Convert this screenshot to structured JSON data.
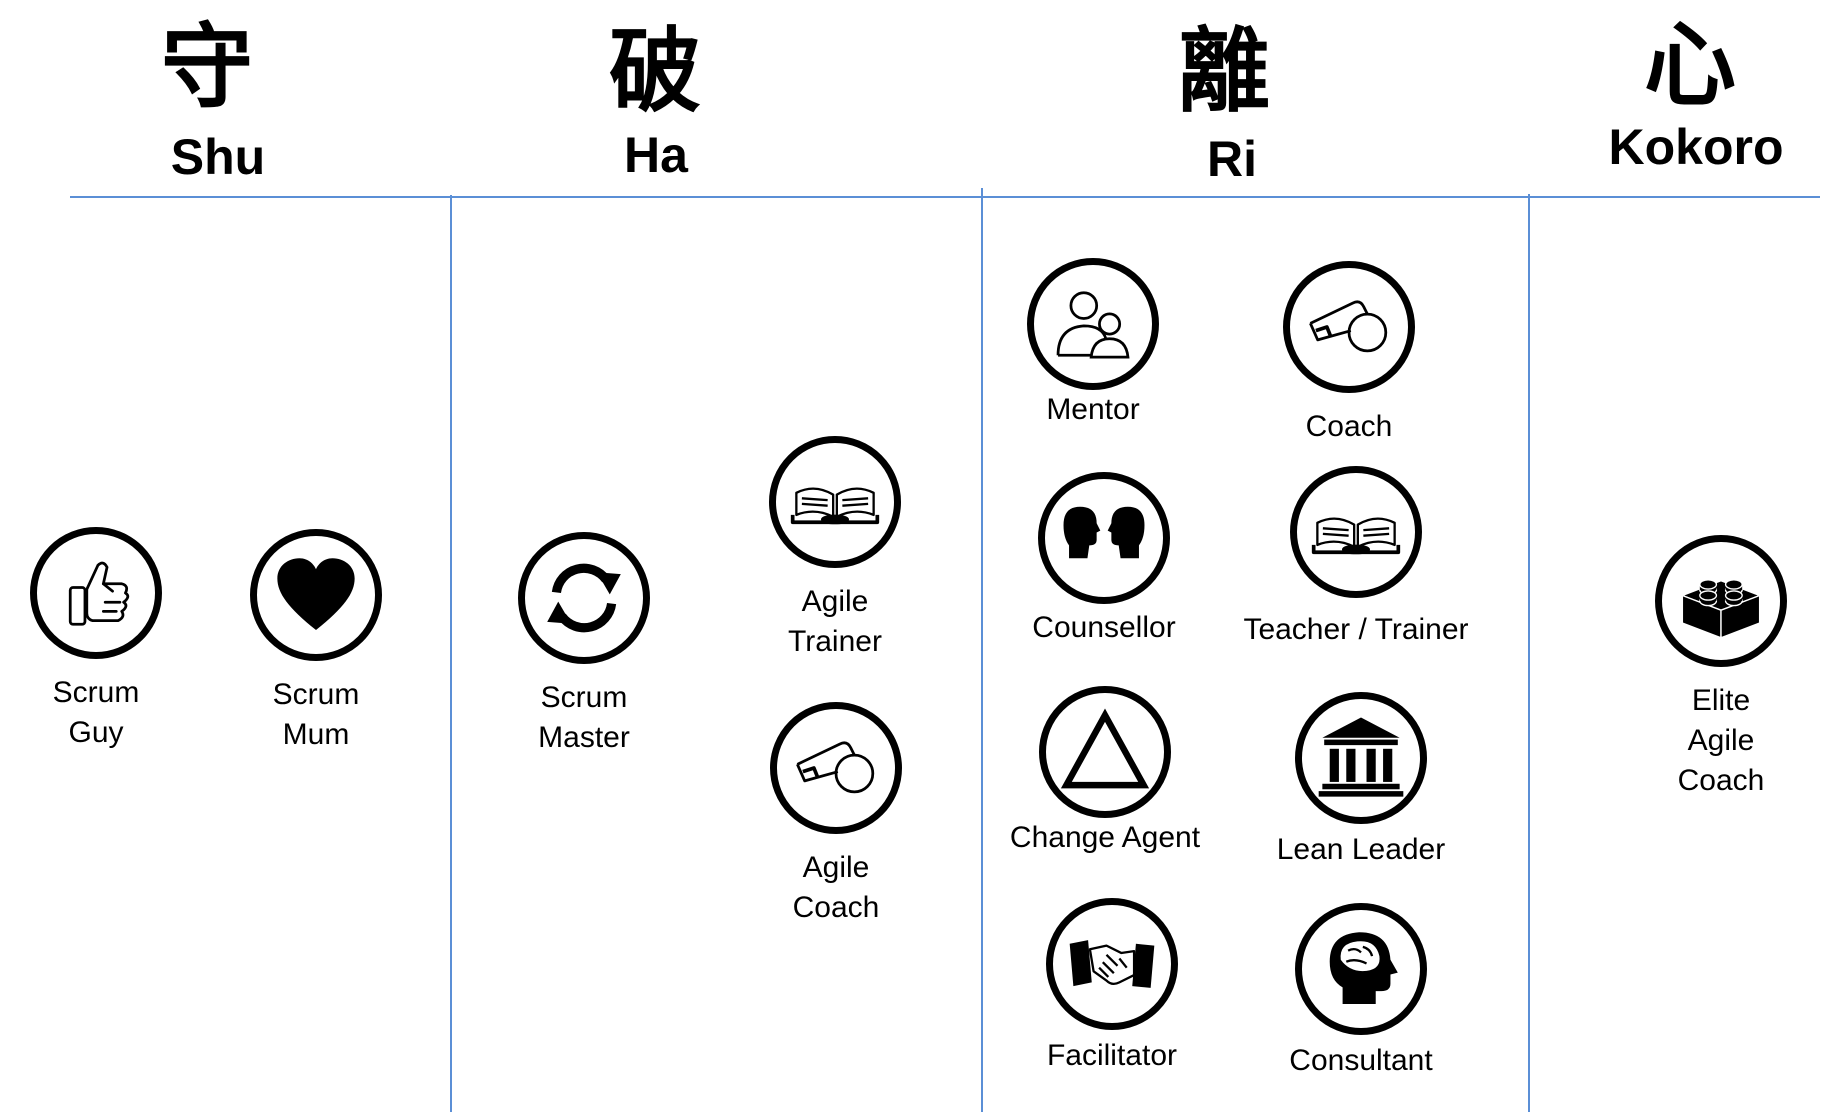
{
  "stages": [
    {
      "kanji": "守",
      "name": "Shu"
    },
    {
      "kanji": "破",
      "name": "Ha"
    },
    {
      "kanji": "離",
      "name": "Ri"
    },
    {
      "kanji": "心",
      "name": "Kokoro"
    }
  ],
  "roles": {
    "scrum_guy": {
      "label": "Scrum\nGuy",
      "icon": "thumbs-up-icon"
    },
    "scrum_mum": {
      "label": "Scrum\nMum",
      "icon": "heart-icon"
    },
    "scrum_master": {
      "label": "Scrum\nMaster",
      "icon": "cycle-arrows-icon"
    },
    "agile_trainer": {
      "label": "Agile\nTrainer",
      "icon": "open-book-icon"
    },
    "agile_coach": {
      "label": "Agile\nCoach",
      "icon": "whistle-icon"
    },
    "mentor": {
      "label": "Mentor",
      "icon": "people-icon"
    },
    "coach": {
      "label": "Coach",
      "icon": "whistle-icon"
    },
    "counsellor": {
      "label": "Counsellor",
      "icon": "two-heads-icon"
    },
    "teacher_trainer": {
      "label": "Teacher / Trainer",
      "icon": "open-book-icon"
    },
    "change_agent": {
      "label": "Change Agent",
      "icon": "triangle-icon"
    },
    "lean_leader": {
      "label": "Lean Leader",
      "icon": "building-icon"
    },
    "facilitator": {
      "label": "Facilitator",
      "icon": "handshake-icon"
    },
    "consultant": {
      "label": "Consultant",
      "icon": "head-brain-icon"
    },
    "elite_agile_coach": {
      "label": "Elite\nAgile\nCoach",
      "icon": "lego-brick-icon"
    }
  },
  "colors": {
    "divider": "#5b8fd6",
    "ink": "#000000"
  }
}
